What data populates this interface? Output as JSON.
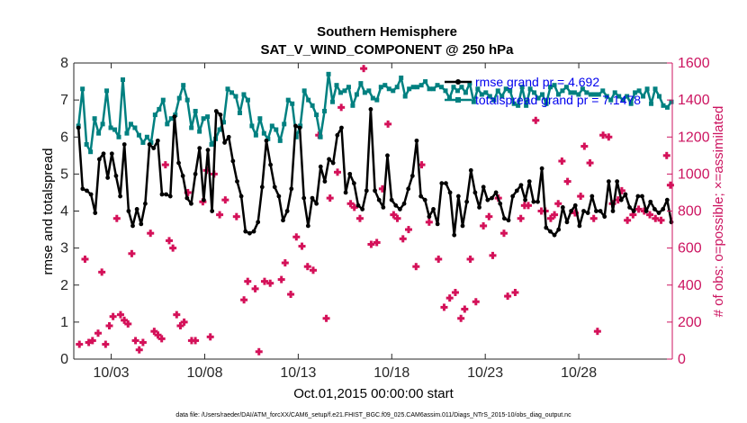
{
  "chart_data": {
    "type": "line",
    "title": "Southern Hemisphere",
    "subtitle": "SAT_V_WIND_COMPONENT @ 250 hPa",
    "xlabel": "Oct.01,2015 00:00:00 start",
    "ylabel_left": "rmse and totalspread",
    "ylabel_right": "# of obs: o=possible; ×=assimilated",
    "footnote": "data file: /Users/raeder/DAI/ATM_forcXX/CAM6_setup/f.e21.FHIST_BGC.f09_025.CAM6assim.011/Diags_NTrS_2015-10/obs_diag_output.nc",
    "xlim": [
      1,
      33
    ],
    "ylim_left": [
      0,
      8
    ],
    "ylim_right": [
      0,
      1600
    ],
    "x_ticks": [
      3,
      8,
      13,
      18,
      23,
      28
    ],
    "x_tick_labels": [
      "10/03",
      "10/08",
      "10/13",
      "10/18",
      "10/23",
      "10/28"
    ],
    "y_left_ticks": [
      "0",
      "1",
      "2",
      "3",
      "4",
      "5",
      "6",
      "7",
      "8"
    ],
    "y_right_ticks": [
      "0",
      "200",
      "400",
      "600",
      "800",
      "1000",
      "1200",
      "1400",
      "1600"
    ],
    "colors": {
      "rmse": "#000000",
      "spread": "#008080",
      "obs": "#d41159",
      "right_axis": "#cc1460",
      "legend_text": "#0000ee"
    },
    "series": [
      {
        "name": "rmse grand pr = 4.692",
        "axis": "left",
        "color": "#000000",
        "values": [
          6.25,
          4.6,
          4.55,
          4.45,
          3.95,
          5.4,
          5.55,
          4.9,
          5.55,
          4.95,
          4.4,
          5.8,
          4.0,
          3.6,
          4.05,
          3.65,
          4.2,
          5.8,
          5.7,
          5.9,
          4.45,
          4.45,
          4.4,
          6.55,
          5.3,
          4.95,
          4.35,
          4.2,
          5.0,
          5.7,
          4.3,
          5.65,
          4.0,
          6.7,
          6.6,
          5.85,
          6.0,
          5.35,
          4.8,
          4.4,
          3.45,
          3.4,
          3.45,
          3.7,
          4.65,
          5.9,
          5.25,
          4.65,
          4.4,
          3.75,
          4.0,
          4.6,
          6.3,
          6.25,
          4.35,
          3.6,
          4.35,
          4.2,
          5.2,
          4.8,
          5.4,
          5.3,
          6.05,
          6.25,
          4.5,
          5.0,
          4.75,
          4.15,
          4.05,
          4.55,
          6.75,
          4.55,
          4.3,
          4.1,
          5.5,
          4.3,
          4.15,
          4.05,
          4.2,
          4.6,
          4.95,
          5.9,
          4.4,
          4.3,
          3.85,
          4.05,
          3.65,
          4.75,
          4.75,
          4.5,
          3.35,
          4.4,
          3.6,
          4.25,
          5.1,
          4.5,
          4.1,
          4.65,
          4.3,
          4.35,
          4.5,
          4.2,
          3.8,
          3.75,
          4.4,
          4.55,
          4.7,
          4.3,
          4.8,
          4.25,
          4.25,
          5.15,
          3.55,
          3.45,
          3.35,
          3.5,
          4.1,
          3.7,
          4.0,
          4.15,
          3.6,
          4.0,
          3.95,
          4.4,
          4.0,
          4.0,
          3.85,
          4.8,
          4.0,
          4.8,
          4.3,
          4.45,
          4.1,
          4.0,
          4.4,
          4.4,
          4.0,
          4.25,
          4.05,
          3.95,
          4.05,
          4.3,
          3.7
        ],
        "x_start": 1.25,
        "x_end": 32.95
      },
      {
        "name": "totalspread grand pr = 7.1478",
        "axis": "left",
        "color": "#008080",
        "values": [
          6.3,
          7.3,
          5.8,
          5.6,
          6.5,
          6.1,
          6.35,
          7.25,
          6.25,
          6.2,
          6.0,
          7.55,
          6.1,
          6.35,
          6.25,
          6.05,
          5.85,
          6.0,
          5.85,
          6.6,
          6.75,
          7.0,
          6.35,
          6.5,
          6.6,
          7.05,
          7.4,
          7.0,
          6.25,
          6.7,
          6.15,
          6.5,
          6.55,
          5.8,
          5.95,
          6.2,
          6.4,
          7.3,
          7.2,
          7.1,
          6.65,
          7.15,
          7.0,
          6.3,
          6.05,
          6.5,
          6.1,
          5.95,
          6.3,
          6.2,
          5.9,
          6.35,
          7.0,
          6.9,
          6.0,
          6.3,
          7.25,
          7.0,
          6.85,
          6.6,
          6.0,
          6.7,
          7.7,
          6.95,
          7.4,
          7.2,
          7.25,
          7.35,
          6.85,
          7.15,
          7.45,
          7.2,
          7.25,
          7.05,
          7.0,
          7.35,
          7.4,
          7.3,
          7.25,
          7.35,
          7.6,
          7.1,
          7.3,
          7.35,
          7.35,
          7.4,
          7.5,
          7.3,
          7.3,
          7.4,
          7.35,
          7.25,
          7.05,
          7.35,
          7.25,
          7.35,
          7.2,
          7.45,
          6.95,
          7.3,
          7.15,
          7.2,
          7.1,
          7.0,
          7.25,
          7.1,
          7.3,
          7.25,
          6.9,
          6.85,
          7.35,
          6.85,
          7.3,
          7.2,
          7.05,
          7.15,
          6.9,
          7.35,
          7.4,
          7.15,
          7.25,
          7.35,
          7.2,
          7.2,
          7.15,
          7.3,
          7.2,
          7.15,
          7.15,
          7.15,
          7.25,
          7.1,
          7.0,
          7.2,
          7.1,
          7.0,
          7.1,
          6.9,
          7.2,
          7.25,
          7.1,
          7.3,
          6.9,
          7.3,
          7.1,
          6.85,
          6.8,
          6.95
        ],
        "x_start": 1.25,
        "x_end": 32.95
      },
      {
        "name": "# of obs assimilated",
        "axis": "right",
        "color": "#d41159",
        "marker": "plus",
        "points": [
          [
            1.3,
            80
          ],
          [
            1.6,
            540
          ],
          [
            1.8,
            90
          ],
          [
            2.0,
            100
          ],
          [
            2.3,
            140
          ],
          [
            2.5,
            470
          ],
          [
            2.7,
            80
          ],
          [
            2.9,
            180
          ],
          [
            3.1,
            230
          ],
          [
            3.3,
            760
          ],
          [
            3.5,
            240
          ],
          [
            3.7,
            210
          ],
          [
            3.9,
            190
          ],
          [
            4.1,
            570
          ],
          [
            4.3,
            100
          ],
          [
            4.5,
            50
          ],
          [
            4.7,
            90
          ],
          [
            5.1,
            680
          ],
          [
            5.3,
            150
          ],
          [
            5.5,
            130
          ],
          [
            5.7,
            110
          ],
          [
            5.9,
            1050
          ],
          [
            6.1,
            640
          ],
          [
            6.3,
            600
          ],
          [
            6.5,
            240
          ],
          [
            6.7,
            180
          ],
          [
            6.9,
            200
          ],
          [
            7.1,
            900
          ],
          [
            7.3,
            100
          ],
          [
            7.5,
            100
          ],
          [
            7.9,
            850
          ],
          [
            8.1,
            1020
          ],
          [
            8.3,
            120
          ],
          [
            8.5,
            1000
          ],
          [
            8.8,
            780
          ],
          [
            9.1,
            860
          ],
          [
            9.7,
            770
          ],
          [
            10.1,
            320
          ],
          [
            10.3,
            420
          ],
          [
            10.7,
            380
          ],
          [
            10.9,
            40
          ],
          [
            11.2,
            420
          ],
          [
            11.5,
            410
          ],
          [
            12.1,
            430
          ],
          [
            12.3,
            520
          ],
          [
            12.6,
            350
          ],
          [
            12.9,
            660
          ],
          [
            13.2,
            610
          ],
          [
            13.5,
            500
          ],
          [
            13.8,
            480
          ],
          [
            14.1,
            1210
          ],
          [
            14.5,
            220
          ],
          [
            14.7,
            870
          ],
          [
            15.1,
            1010
          ],
          [
            15.3,
            1360
          ],
          [
            15.8,
            840
          ],
          [
            16.0,
            820
          ],
          [
            16.3,
            760
          ],
          [
            16.5,
            1570
          ],
          [
            16.9,
            620
          ],
          [
            17.2,
            630
          ],
          [
            17.5,
            920
          ],
          [
            17.8,
            1270
          ],
          [
            18.1,
            780
          ],
          [
            18.3,
            760
          ],
          [
            18.6,
            650
          ],
          [
            18.9,
            700
          ],
          [
            19.3,
            500
          ],
          [
            19.6,
            1050
          ],
          [
            20.0,
            740
          ],
          [
            20.5,
            540
          ],
          [
            20.8,
            280
          ],
          [
            21.1,
            330
          ],
          [
            21.4,
            360
          ],
          [
            21.7,
            220
          ],
          [
            21.9,
            270
          ],
          [
            22.2,
            540
          ],
          [
            22.5,
            310
          ],
          [
            22.9,
            720
          ],
          [
            23.2,
            770
          ],
          [
            23.4,
            560
          ],
          [
            23.7,
            870
          ],
          [
            24.0,
            680
          ],
          [
            24.2,
            340
          ],
          [
            24.6,
            360
          ],
          [
            24.9,
            760
          ],
          [
            25.1,
            830
          ],
          [
            25.3,
            830
          ],
          [
            25.7,
            1290
          ],
          [
            26.0,
            800
          ],
          [
            26.2,
            800
          ],
          [
            26.5,
            760
          ],
          [
            26.7,
            780
          ],
          [
            26.9,
            840
          ],
          [
            27.1,
            1070
          ],
          [
            27.4,
            960
          ],
          [
            27.8,
            790
          ],
          [
            28.1,
            880
          ],
          [
            28.3,
            1150
          ],
          [
            28.6,
            1060
          ],
          [
            28.8,
            760
          ],
          [
            29.0,
            150
          ],
          [
            29.3,
            1210
          ],
          [
            29.6,
            1200
          ],
          [
            29.8,
            840
          ],
          [
            30.1,
            860
          ],
          [
            30.3,
            910
          ],
          [
            30.6,
            750
          ],
          [
            30.9,
            780
          ],
          [
            31.2,
            810
          ],
          [
            31.5,
            800
          ],
          [
            31.8,
            780
          ],
          [
            32.1,
            760
          ],
          [
            32.4,
            750
          ],
          [
            32.7,
            1100
          ],
          [
            32.9,
            940
          ]
        ]
      }
    ],
    "legend": [
      {
        "label": "rmse grand pr = 4.692",
        "color": "#000000",
        "marker": "circle"
      },
      {
        "label": "totalspread grand pr = 7.1478",
        "color": "#008080",
        "marker": "square"
      }
    ],
    "legend_position": "top-right"
  }
}
